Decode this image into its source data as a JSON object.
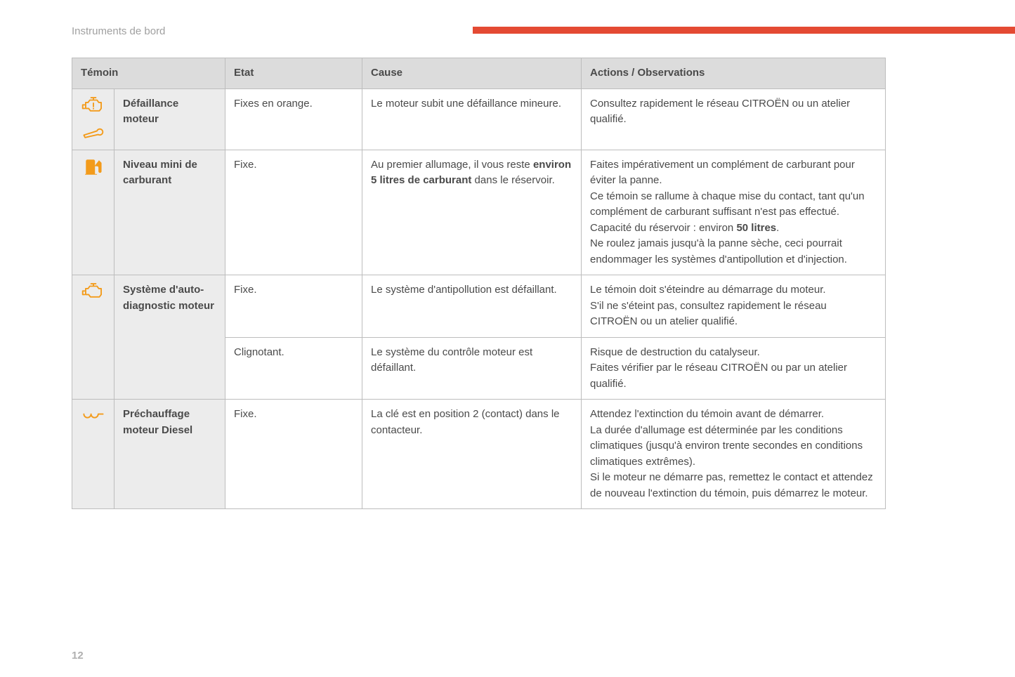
{
  "header": {
    "section_title": "Instruments de bord"
  },
  "accent_color": "#e44a33",
  "icon_color": "#f39b1b",
  "table": {
    "columns": [
      "Témoin",
      "Etat",
      "Cause",
      "Actions / Observations"
    ],
    "rows": [
      {
        "icons": [
          "engine-warning-icon",
          "wrench-icon"
        ],
        "label": "Défaillance moteur",
        "states": [
          {
            "etat": "Fixes en orange.",
            "cause_segments": [
              {
                "text": "Le moteur subit une défaillance mineure.",
                "bold": false
              }
            ],
            "action_segments": [
              {
                "text": "Consultez rapidement le réseau CITROËN ou un atelier qualifié.",
                "bold": false
              }
            ]
          }
        ]
      },
      {
        "icons": [
          "fuel-pump-icon"
        ],
        "label": "Niveau mini de carburant",
        "states": [
          {
            "etat": "Fixe.",
            "cause_segments": [
              {
                "text": "Au premier allumage, il vous reste ",
                "bold": false
              },
              {
                "text": "environ 5 litres de carburant",
                "bold": true
              },
              {
                "text": " dans le réservoir.",
                "bold": false
              }
            ],
            "action_segments": [
              {
                "text": "Faites impérativement un complément de carburant pour éviter la panne.",
                "bold": false,
                "br": true
              },
              {
                "text": "Ce témoin se rallume à chaque mise du contact, tant qu'un complément de carburant suffisant n'est pas effectué.",
                "bold": false,
                "br": true
              },
              {
                "text": "Capacité du réservoir : environ ",
                "bold": false
              },
              {
                "text": "50 litres",
                "bold": true
              },
              {
                "text": ".",
                "bold": false,
                "br": true
              },
              {
                "text": "Ne roulez jamais jusqu'à la panne sèche, ceci pourrait endommager les systèmes d'antipollution et d'injection.",
                "bold": false
              }
            ]
          }
        ]
      },
      {
        "icons": [
          "engine-check-icon"
        ],
        "label": "Système d'auto-diagnostic moteur",
        "states": [
          {
            "etat": "Fixe.",
            "cause_segments": [
              {
                "text": "Le système d'antipollution est défaillant.",
                "bold": false
              }
            ],
            "action_segments": [
              {
                "text": "Le témoin doit s'éteindre au démarrage du moteur.",
                "bold": false,
                "br": true
              },
              {
                "text": "S'il ne s'éteint pas, consultez rapidement le réseau CITROËN ou un atelier qualifié.",
                "bold": false
              }
            ]
          },
          {
            "etat": "Clignotant.",
            "cause_segments": [
              {
                "text": "Le système du contrôle moteur est défaillant.",
                "bold": false
              }
            ],
            "action_segments": [
              {
                "text": "Risque de destruction du catalyseur.",
                "bold": false,
                "br": true
              },
              {
                "text": "Faites vérifier par le réseau CITROËN ou par un atelier qualifié.",
                "bold": false
              }
            ]
          }
        ]
      },
      {
        "icons": [
          "glow-plug-icon"
        ],
        "label": "Préchauffage moteur Diesel",
        "states": [
          {
            "etat": "Fixe.",
            "cause_segments": [
              {
                "text": "La clé est en position 2 (contact) dans le contacteur.",
                "bold": false
              }
            ],
            "action_segments": [
              {
                "text": "Attendez l'extinction du témoin avant de démarrer.",
                "bold": false,
                "br": true
              },
              {
                "text": "La durée d'allumage est déterminée par les conditions climatiques (jusqu'à environ trente secondes en conditions climatiques extrêmes).",
                "bold": false,
                "br": true
              },
              {
                "text": "Si le moteur ne démarre pas, remettez le contact et attendez de nouveau l'extinction du témoin, puis démarrez le moteur.",
                "bold": false
              }
            ]
          }
        ]
      }
    ]
  },
  "page_number": "12"
}
